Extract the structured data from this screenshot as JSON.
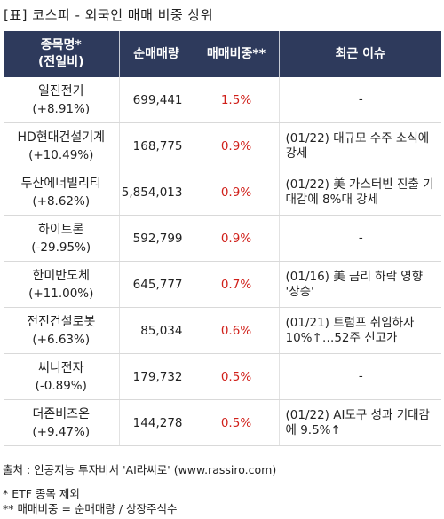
{
  "title": "[표] 코스피 - 외국인 매매 비중 상위",
  "headers": {
    "name_line1": "종목명*",
    "name_line2": "(전일비)",
    "volume": "순매매량",
    "ratio": "매매비중**",
    "issue": "최근 이슈"
  },
  "rows": [
    {
      "name": "일진전기",
      "change": "(+8.91%)",
      "volume": "699,441",
      "ratio": "1.5%",
      "issue": "-"
    },
    {
      "name": "HD현대건설기계",
      "change": "(+10.49%)",
      "volume": "168,775",
      "ratio": "0.9%",
      "issue": "(01/22) 대규모 수주 소식에 강세"
    },
    {
      "name": "두산에너빌리티",
      "change": "(+8.62%)",
      "volume": "5,854,013",
      "ratio": "0.9%",
      "issue": "(01/22) 美 가스터빈 진출 기대감에 8%대 강세"
    },
    {
      "name": "하이트론",
      "change": "(-29.95%)",
      "volume": "592,799",
      "ratio": "0.9%",
      "issue": "-"
    },
    {
      "name": "한미반도체",
      "change": "(+11.00%)",
      "volume": "645,777",
      "ratio": "0.7%",
      "issue": "(01/16) 美 금리 하락 영향 '상승'"
    },
    {
      "name": "전진건설로봇",
      "change": "(+6.63%)",
      "volume": "85,034",
      "ratio": "0.6%",
      "issue": "(01/21) 트럼프 취임하자 10%↑…52주 신고가"
    },
    {
      "name": "써니전자",
      "change": "(-0.89%)",
      "volume": "179,732",
      "ratio": "0.5%",
      "issue": "-"
    },
    {
      "name": "더존비즈온",
      "change": "(+9.47%)",
      "volume": "144,278",
      "ratio": "0.5%",
      "issue": "(01/22) AI도구 성과 기대감에 9.5%↑"
    }
  ],
  "source": "출처 : 인공지능 투자비서 'AI라씨로' (www.rassiro.com)",
  "notes": [
    "* ETF 종목 제외",
    "** 매매비중 = 순매매량 / 상장주식수"
  ],
  "colors": {
    "header_bg": "#2e3a5c",
    "ratio_text": "#d0201a"
  }
}
